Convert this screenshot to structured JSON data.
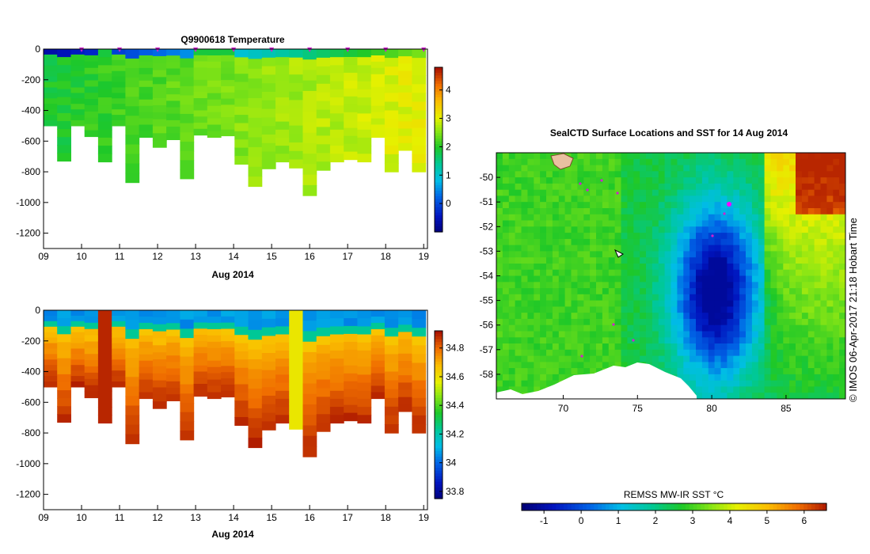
{
  "chart_data": [
    {
      "id": "temperature",
      "type": "heatmap",
      "title": "Q9900618  Temperature",
      "xlabel": "Aug 2014",
      "ylabel": "",
      "xlim": [
        9,
        19.1
      ],
      "ylim": [
        -1300,
        0
      ],
      "x_ticks": [
        "09",
        "10",
        "11",
        "12",
        "13",
        "14",
        "15",
        "16",
        "17",
        "18",
        "19"
      ],
      "y_ticks": [
        "0",
        "-200",
        "-400",
        "-600",
        "-800",
        "-1000",
        "-1200"
      ],
      "colorbar": {
        "ticks": [
          "0",
          "1",
          "2",
          "3",
          "4"
        ],
        "range": [
          -1,
          4.8
        ]
      },
      "profile_markers": [
        10,
        11,
        12,
        13,
        14,
        15,
        16,
        17,
        18,
        19
      ]
    },
    {
      "id": "salinity",
      "type": "heatmap",
      "title": "",
      "xlabel": "Aug 2014",
      "ylabel": "",
      "xlim": [
        9,
        19.1
      ],
      "ylim": [
        -1300,
        0
      ],
      "x_ticks": [
        "09",
        "10",
        "11",
        "12",
        "13",
        "14",
        "15",
        "16",
        "17",
        "18",
        "19"
      ],
      "y_ticks": [
        "0",
        "-200",
        "-400",
        "-600",
        "-800",
        "-1000",
        "-1200"
      ],
      "colorbar": {
        "ticks": [
          "33.8",
          "34",
          "34.2",
          "34.4",
          "34.6",
          "34.8"
        ],
        "range": [
          33.75,
          34.92
        ]
      }
    },
    {
      "id": "sst_map",
      "type": "heatmap",
      "title": "SealCTD Surface Locations and SST for 14 Aug 2014",
      "x_ticks": [
        "70",
        "75",
        "80",
        "85"
      ],
      "y_ticks": [
        "-50",
        "-51",
        "-52",
        "-53",
        "-54",
        "-55",
        "-56",
        "-57",
        "-58"
      ],
      "xlim": [
        65.5,
        89
      ],
      "ylim": [
        -59,
        -49
      ]
    }
  ],
  "sst_colorbar": {
    "label": "REMSS MW-IR SST °C",
    "ticks": [
      "-1",
      "0",
      "1",
      "2",
      "3",
      "4",
      "5",
      "6"
    ],
    "range": [
      -1.6,
      6.6
    ]
  },
  "side_stamp": "© IMOS 06-Apr-2017 21:18 Hobart Time"
}
